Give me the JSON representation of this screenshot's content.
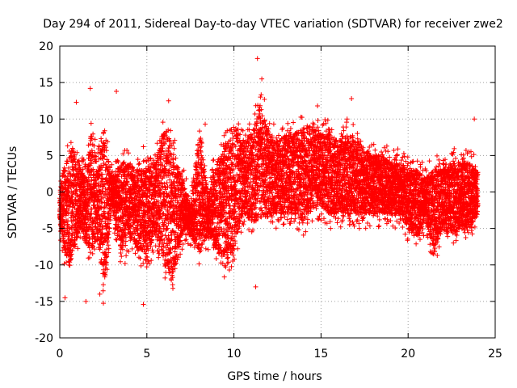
{
  "chart_data": {
    "type": "scatter",
    "title": "Day 294 of 2011, Sidereal Day-to-day VTEC variation (SDTVAR) for receiver zwe2",
    "xlabel": "GPS time / hours",
    "ylabel": "SDTVAR / TECUs",
    "xlim": [
      0,
      25
    ],
    "ylim": [
      -20,
      20
    ],
    "xticks": [
      "0",
      "5",
      "10",
      "15",
      "20",
      "25"
    ],
    "yticks": [
      "20",
      "15",
      "10",
      "5",
      "0",
      "-5",
      "-10",
      "-15",
      "-20"
    ],
    "grid": true,
    "marker": "+",
    "color": "#ff0000",
    "series": [
      {
        "name": "zwe2",
        "envelope_note": "dense plus-marker band; values approximate envelope of the scatter",
        "envelope": [
          [
            0.0,
            -4,
            0
          ],
          [
            0.2,
            -7,
            3
          ],
          [
            0.5,
            -12,
            5
          ],
          [
            0.8,
            -8,
            6
          ],
          [
            1.2,
            -5,
            3
          ],
          [
            1.5,
            -7,
            2
          ],
          [
            1.8,
            -8,
            8
          ],
          [
            2.2,
            -6,
            4
          ],
          [
            2.5,
            -14,
            8
          ],
          [
            3.0,
            -2,
            2
          ],
          [
            3.5,
            -8,
            4
          ],
          [
            4.0,
            -6,
            4
          ],
          [
            4.5,
            -8,
            3
          ],
          [
            5.0,
            -9,
            3
          ],
          [
            5.5,
            -6,
            4
          ],
          [
            6.0,
            -10,
            9
          ],
          [
            6.5,
            -12,
            6
          ],
          [
            7.0,
            -6,
            2
          ],
          [
            7.5,
            -6,
            -2
          ],
          [
            8.0,
            -8,
            8
          ],
          [
            8.5,
            -6,
            0
          ],
          [
            9.0,
            -8,
            4
          ],
          [
            9.5,
            -10,
            6
          ],
          [
            10.0,
            -8,
            9
          ],
          [
            10.5,
            -3,
            7
          ],
          [
            11.0,
            -4,
            8
          ],
          [
            11.5,
            -4,
            12
          ],
          [
            12.0,
            -3,
            8
          ],
          [
            12.5,
            -3,
            7
          ],
          [
            13.0,
            -3,
            8
          ],
          [
            13.5,
            -3,
            8
          ],
          [
            14.0,
            -4,
            9
          ],
          [
            14.5,
            -2,
            9
          ],
          [
            15.0,
            -2,
            8
          ],
          [
            15.5,
            -3,
            8
          ],
          [
            16.0,
            -3,
            7
          ],
          [
            16.5,
            -3,
            8
          ],
          [
            17.0,
            -3,
            7
          ],
          [
            17.5,
            -3,
            6
          ],
          [
            18.0,
            -3,
            5
          ],
          [
            18.5,
            -3,
            5
          ],
          [
            19.0,
            -3,
            4
          ],
          [
            19.5,
            -3,
            4
          ],
          [
            20.0,
            -5,
            3
          ],
          [
            20.5,
            -6,
            3
          ],
          [
            21.0,
            -4,
            2
          ],
          [
            21.5,
            -8,
            3
          ],
          [
            22.0,
            -5,
            3
          ],
          [
            22.5,
            -6,
            4
          ],
          [
            23.0,
            -5,
            4
          ],
          [
            23.5,
            -5,
            4
          ],
          [
            24.0,
            -3,
            3
          ]
        ],
        "outliers": [
          [
            3.25,
            13.8
          ],
          [
            11.35,
            18.3
          ],
          [
            11.25,
            -13.0
          ],
          [
            14.8,
            11.8
          ],
          [
            1.75,
            14.2
          ],
          [
            6.25,
            12.5
          ],
          [
            0.95,
            12.3
          ],
          [
            16.75,
            12.8
          ],
          [
            4.8,
            -15.4
          ],
          [
            23.8,
            10.0
          ],
          [
            15.55,
            -5.0
          ],
          [
            8.35,
            9.3
          ],
          [
            3.75,
            -9.8
          ],
          [
            4.8,
            6.2
          ],
          [
            22.6,
            -7.0
          ],
          [
            0.3,
            -14.5
          ],
          [
            1.5,
            -15.0
          ],
          [
            2.3,
            -14.0
          ],
          [
            17.2,
            -5.0
          ],
          [
            11.6,
            15.5
          ],
          [
            11.75,
            12.7
          ]
        ]
      }
    ]
  }
}
